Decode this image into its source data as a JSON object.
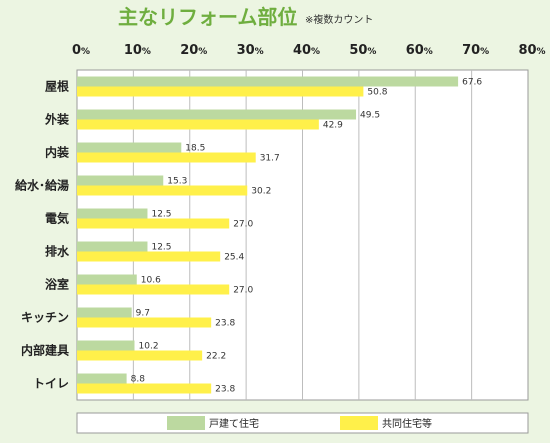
{
  "chart_data": {
    "type": "bar",
    "orientation": "horizontal",
    "title": "主なリフォーム部位",
    "subtitle": "※複数カウント",
    "categories": [
      "屋根",
      "外装",
      "内装",
      "給水･給湯",
      "電気",
      "排水",
      "浴室",
      "キッチン",
      "内部建具",
      "トイレ"
    ],
    "series": [
      {
        "name": "戸建て住宅",
        "values": [
          67.6,
          49.5,
          18.5,
          15.3,
          12.5,
          12.5,
          10.6,
          9.7,
          10.2,
          8.8
        ],
        "labels": [
          "67.6",
          "49.5",
          "18.5",
          "15.3",
          "12.5",
          "12.5",
          "10.6",
          "9.7",
          "10.2",
          "8.8"
        ],
        "color": "#bcd9a0"
      },
      {
        "name": "共同住宅等",
        "values": [
          50.8,
          42.9,
          31.7,
          30.2,
          27.0,
          25.4,
          27.0,
          23.8,
          22.2,
          23.8
        ],
        "labels": [
          "50.8",
          "42.9",
          "31.7",
          "30.2",
          "27.0",
          "25.4",
          "27.0",
          "23.8",
          "22.2",
          "23.8"
        ],
        "color": "#fff04a"
      }
    ],
    "ticks": [
      0,
      10,
      20,
      30,
      40,
      50,
      60,
      70,
      80
    ],
    "tick_suffix": "%",
    "xlim": [
      0,
      80
    ],
    "grid": true,
    "legend_position": "bottom"
  }
}
